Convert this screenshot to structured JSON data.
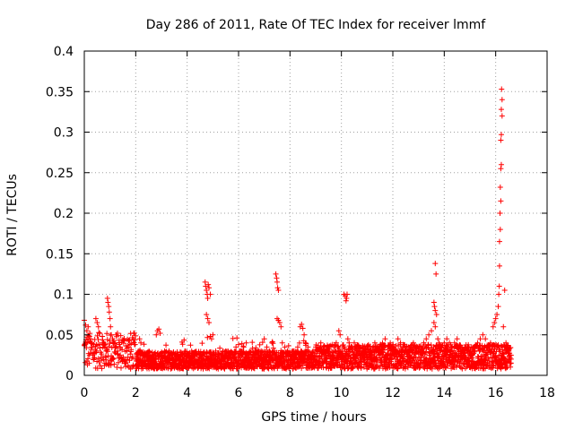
{
  "chart_data": {
    "type": "scatter",
    "title": "Day 286 of 2011, Rate Of TEC Index for receiver lmmf",
    "xlabel": "GPS time / hours",
    "ylabel": "ROTI / TECUs",
    "xlim": [
      0,
      18
    ],
    "ylim": [
      0,
      0.4
    ],
    "x_ticks": [
      0,
      2,
      4,
      6,
      8,
      10,
      12,
      14,
      16,
      18
    ],
    "x_tick_labels": [
      "0",
      "2",
      "4",
      "6",
      "8",
      "10",
      "12",
      "14",
      "16",
      "18"
    ],
    "y_ticks": [
      0,
      0.05,
      0.1,
      0.15,
      0.2,
      0.25,
      0.3,
      0.35,
      0.4
    ],
    "y_tick_labels": [
      "0",
      "0.05",
      "0.1",
      "0.15",
      "0.2",
      "0.25",
      "0.3",
      "0.35",
      "0.4"
    ],
    "grid": true,
    "marker": "+",
    "marker_color": "#ff0000",
    "series": [
      {
        "name": "ROTI",
        "points": [
          [
            0.0,
            0.068
          ],
          [
            0.05,
            0.062
          ],
          [
            0.1,
            0.055
          ],
          [
            0.15,
            0.06
          ],
          [
            0.2,
            0.048
          ],
          [
            0.25,
            0.04
          ],
          [
            0.3,
            0.035
          ],
          [
            0.35,
            0.028
          ],
          [
            0.4,
            0.022
          ],
          [
            0.45,
            0.07
          ],
          [
            0.5,
            0.065
          ],
          [
            0.55,
            0.06
          ],
          [
            0.6,
            0.052
          ],
          [
            0.7,
            0.048
          ],
          [
            0.75,
            0.04
          ],
          [
            0.8,
            0.035
          ],
          [
            0.85,
            0.03
          ],
          [
            0.8,
            0.015
          ],
          [
            0.78,
            0.012
          ],
          [
            0.9,
            0.095
          ],
          [
            0.92,
            0.09
          ],
          [
            0.95,
            0.085
          ],
          [
            0.97,
            0.078
          ],
          [
            1.0,
            0.07
          ],
          [
            1.02,
            0.06
          ],
          [
            1.05,
            0.05
          ],
          [
            1.1,
            0.045
          ],
          [
            1.15,
            0.04
          ],
          [
            1.2,
            0.035
          ],
          [
            1.3,
            0.03
          ],
          [
            1.4,
            0.025
          ],
          [
            1.5,
            0.02
          ],
          [
            1.6,
            0.015
          ],
          [
            1.7,
            0.012
          ],
          [
            1.8,
            0.008
          ],
          [
            1.9,
            0.012
          ],
          [
            2.0,
            0.02
          ],
          [
            2.1,
            0.03
          ],
          [
            2.15,
            0.045
          ],
          [
            2.2,
            0.04
          ],
          [
            2.3,
            0.015
          ],
          [
            2.4,
            0.012
          ],
          [
            2.5,
            0.01
          ],
          [
            2.6,
            0.015
          ],
          [
            2.7,
            0.012
          ],
          [
            2.8,
            0.05
          ],
          [
            2.85,
            0.055
          ],
          [
            2.9,
            0.057
          ],
          [
            2.95,
            0.052
          ],
          [
            3.0,
            0.015
          ],
          [
            3.1,
            0.012
          ],
          [
            3.2,
            0.02
          ],
          [
            3.3,
            0.03
          ],
          [
            3.4,
            0.025
          ],
          [
            3.5,
            0.015
          ],
          [
            3.6,
            0.02
          ],
          [
            3.7,
            0.018
          ],
          [
            3.8,
            0.012
          ],
          [
            3.9,
            0.02
          ],
          [
            4.0,
            0.025
          ],
          [
            4.1,
            0.015
          ],
          [
            4.2,
            0.02
          ],
          [
            4.3,
            0.018
          ],
          [
            4.4,
            0.015
          ],
          [
            4.5,
            0.02
          ],
          [
            4.6,
            0.025
          ],
          [
            4.7,
            0.115
          ],
          [
            4.72,
            0.11
          ],
          [
            4.75,
            0.105
          ],
          [
            4.78,
            0.1
          ],
          [
            4.8,
            0.095
          ],
          [
            4.82,
            0.112
          ],
          [
            4.85,
            0.108
          ],
          [
            4.9,
            0.1
          ],
          [
            4.75,
            0.075
          ],
          [
            4.8,
            0.07
          ],
          [
            4.85,
            0.065
          ],
          [
            4.9,
            0.048
          ],
          [
            4.95,
            0.045
          ],
          [
            5.0,
            0.05
          ],
          [
            5.1,
            0.02
          ],
          [
            5.2,
            0.015
          ],
          [
            5.3,
            0.018
          ],
          [
            5.4,
            0.012
          ],
          [
            5.5,
            0.015
          ],
          [
            5.6,
            0.02
          ],
          [
            5.7,
            0.015
          ],
          [
            5.8,
            0.025
          ],
          [
            5.9,
            0.035
          ],
          [
            6.0,
            0.038
          ],
          [
            6.1,
            0.03
          ],
          [
            6.2,
            0.035
          ],
          [
            6.3,
            0.04
          ],
          [
            6.4,
            0.025
          ],
          [
            6.5,
            0.015
          ],
          [
            6.6,
            0.02
          ],
          [
            6.7,
            0.012
          ],
          [
            6.8,
            0.025
          ],
          [
            6.9,
            0.03
          ],
          [
            7.0,
            0.045
          ],
          [
            7.1,
            0.035
          ],
          [
            7.2,
            0.03
          ],
          [
            7.3,
            0.04
          ],
          [
            7.45,
            0.125
          ],
          [
            7.48,
            0.12
          ],
          [
            7.5,
            0.115
          ],
          [
            7.52,
            0.108
          ],
          [
            7.55,
            0.105
          ],
          [
            7.5,
            0.07
          ],
          [
            7.55,
            0.068
          ],
          [
            7.6,
            0.065
          ],
          [
            7.65,
            0.06
          ],
          [
            7.7,
            0.04
          ],
          [
            7.8,
            0.035
          ],
          [
            7.9,
            0.03
          ],
          [
            8.0,
            0.028
          ],
          [
            8.1,
            0.025
          ],
          [
            8.2,
            0.03
          ],
          [
            8.3,
            0.035
          ],
          [
            8.4,
            0.06
          ],
          [
            8.45,
            0.063
          ],
          [
            8.5,
            0.058
          ],
          [
            8.55,
            0.05
          ],
          [
            8.6,
            0.04
          ],
          [
            8.7,
            0.035
          ],
          [
            8.8,
            0.025
          ],
          [
            8.9,
            0.03
          ],
          [
            9.0,
            0.035
          ],
          [
            9.1,
            0.03
          ],
          [
            9.2,
            0.04
          ],
          [
            9.3,
            0.035
          ],
          [
            9.4,
            0.025
          ],
          [
            9.5,
            0.03
          ],
          [
            9.6,
            0.02
          ],
          [
            9.7,
            0.035
          ],
          [
            9.8,
            0.04
          ],
          [
            9.9,
            0.055
          ],
          [
            9.95,
            0.05
          ],
          [
            10.1,
            0.1
          ],
          [
            10.15,
            0.098
          ],
          [
            10.2,
            0.095
          ],
          [
            10.18,
            0.092
          ],
          [
            10.22,
            0.1
          ],
          [
            10.25,
            0.045
          ],
          [
            10.3,
            0.04
          ],
          [
            10.4,
            0.035
          ],
          [
            10.5,
            0.04
          ],
          [
            10.6,
            0.03
          ],
          [
            10.7,
            0.035
          ],
          [
            10.8,
            0.025
          ],
          [
            10.9,
            0.03
          ],
          [
            11.0,
            0.035
          ],
          [
            11.1,
            0.03
          ],
          [
            11.2,
            0.025
          ],
          [
            11.3,
            0.04
          ],
          [
            11.4,
            0.035
          ],
          [
            11.5,
            0.03
          ],
          [
            11.6,
            0.04
          ],
          [
            11.7,
            0.045
          ],
          [
            11.8,
            0.035
          ],
          [
            11.9,
            0.04
          ],
          [
            12.0,
            0.035
          ],
          [
            12.1,
            0.03
          ],
          [
            12.2,
            0.045
          ],
          [
            12.3,
            0.04
          ],
          [
            12.4,
            0.035
          ],
          [
            12.5,
            0.03
          ],
          [
            12.6,
            0.035
          ],
          [
            12.7,
            0.03
          ],
          [
            12.8,
            0.04
          ],
          [
            12.9,
            0.035
          ],
          [
            13.0,
            0.03
          ],
          [
            13.1,
            0.035
          ],
          [
            13.2,
            0.04
          ],
          [
            13.3,
            0.045
          ],
          [
            13.4,
            0.05
          ],
          [
            13.5,
            0.055
          ],
          [
            13.65,
            0.138
          ],
          [
            13.68,
            0.125
          ],
          [
            13.6,
            0.09
          ],
          [
            13.62,
            0.085
          ],
          [
            13.65,
            0.08
          ],
          [
            13.7,
            0.075
          ],
          [
            13.6,
            0.065
          ],
          [
            13.65,
            0.06
          ],
          [
            13.75,
            0.045
          ],
          [
            13.8,
            0.04
          ],
          [
            13.9,
            0.035
          ],
          [
            14.0,
            0.04
          ],
          [
            14.1,
            0.045
          ],
          [
            14.2,
            0.04
          ],
          [
            14.3,
            0.035
          ],
          [
            14.4,
            0.04
          ],
          [
            14.5,
            0.045
          ],
          [
            14.6,
            0.035
          ],
          [
            14.7,
            0.03
          ],
          [
            14.8,
            0.035
          ],
          [
            14.9,
            0.03
          ],
          [
            15.0,
            0.025
          ],
          [
            15.1,
            0.03
          ],
          [
            15.2,
            0.035
          ],
          [
            15.3,
            0.04
          ],
          [
            15.4,
            0.045
          ],
          [
            15.5,
            0.05
          ],
          [
            15.6,
            0.045
          ],
          [
            15.7,
            0.035
          ],
          [
            15.8,
            0.04
          ],
          [
            15.9,
            0.06
          ],
          [
            15.95,
            0.065
          ],
          [
            16.0,
            0.07
          ],
          [
            16.05,
            0.075
          ],
          [
            16.1,
            0.085
          ],
          [
            16.12,
            0.1
          ],
          [
            16.14,
            0.11
          ],
          [
            16.15,
            0.135
          ],
          [
            16.15,
            0.165
          ],
          [
            16.18,
            0.18
          ],
          [
            16.17,
            0.2
          ],
          [
            16.2,
            0.215
          ],
          [
            16.18,
            0.232
          ],
          [
            16.2,
            0.255
          ],
          [
            16.22,
            0.26
          ],
          [
            16.2,
            0.29
          ],
          [
            16.22,
            0.297
          ],
          [
            16.25,
            0.32
          ],
          [
            16.22,
            0.328
          ],
          [
            16.25,
            0.34
          ],
          [
            16.23,
            0.353
          ],
          [
            16.3,
            0.06
          ],
          [
            16.35,
            0.105
          ],
          [
            16.4,
            0.04
          ],
          [
            16.45,
            0.035
          ],
          [
            16.5,
            0.03
          ],
          [
            16.55,
            0.025
          ],
          [
            16.6,
            0.02
          ]
        ]
      }
    ]
  }
}
